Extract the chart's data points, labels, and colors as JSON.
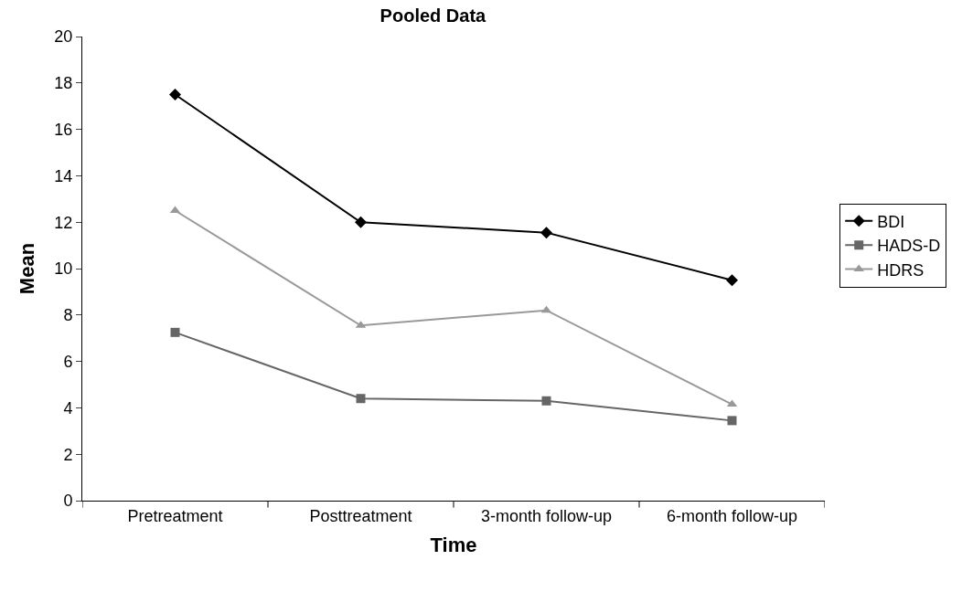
{
  "chart_data": {
    "type": "line",
    "title": "Pooled Data",
    "xlabel": "Time",
    "ylabel": "Mean",
    "categories": [
      "Pretreatment",
      "Posttreatment",
      "3-month follow-up",
      "6-month follow-up"
    ],
    "series": [
      {
        "name": "BDI",
        "color": "#000000",
        "marker": "diamond",
        "values": [
          17.5,
          12.0,
          11.55,
          9.5
        ]
      },
      {
        "name": "HADS-D",
        "color": "#666666",
        "marker": "square",
        "values": [
          7.25,
          4.4,
          4.3,
          3.45
        ]
      },
      {
        "name": "HDRS",
        "color": "#999999",
        "marker": "triangle",
        "values": [
          12.5,
          7.55,
          8.2,
          4.15
        ]
      }
    ],
    "ylim": [
      0,
      20
    ],
    "yticks": [
      0,
      2,
      4,
      6,
      8,
      10,
      12,
      14,
      16,
      18,
      20
    ],
    "legend": "right",
    "line_style": "solid"
  }
}
